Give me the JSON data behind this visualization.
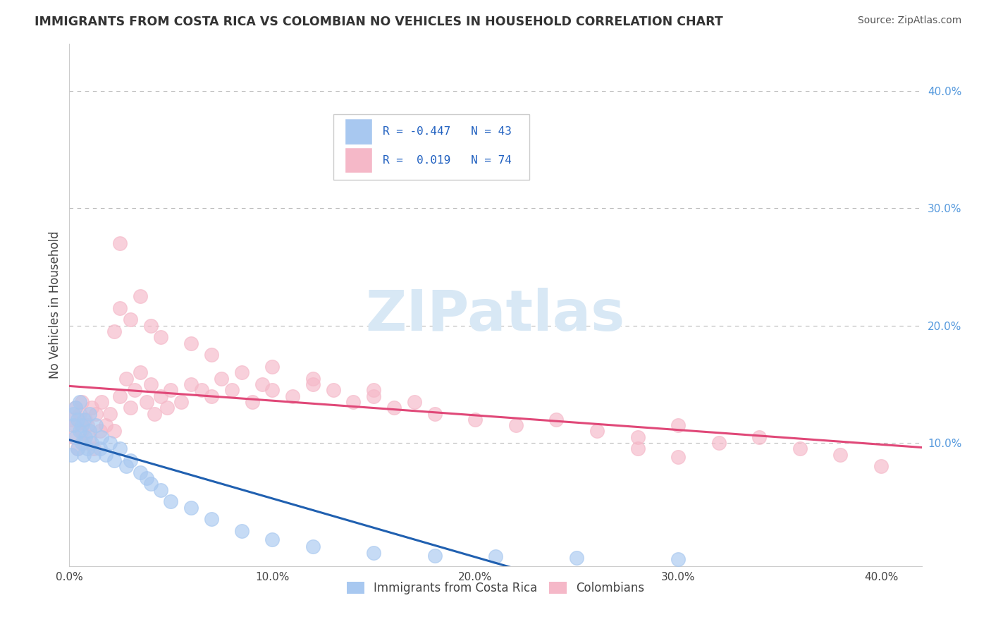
{
  "title": "IMMIGRANTS FROM COSTA RICA VS COLOMBIAN NO VEHICLES IN HOUSEHOLD CORRELATION CHART",
  "source": "Source: ZipAtlas.com",
  "ylabel": "No Vehicles in Household",
  "legend_labels": [
    "Immigrants from Costa Rica",
    "Colombians"
  ],
  "R_blue": -0.447,
  "N_blue": 43,
  "R_pink": 0.019,
  "N_pink": 74,
  "xlim": [
    0.0,
    0.42
  ],
  "ylim": [
    -0.005,
    0.44
  ],
  "color_blue": "#A8C8F0",
  "color_pink": "#F5B8C8",
  "line_color_blue": "#2060B0",
  "line_color_pink": "#E04878",
  "background_color": "#FFFFFF",
  "watermark": "ZIPatlas",
  "watermark_color": "#D8E8F5",
  "blue_x": [
    0.001,
    0.002,
    0.002,
    0.003,
    0.003,
    0.004,
    0.004,
    0.005,
    0.005,
    0.006,
    0.006,
    0.007,
    0.007,
    0.008,
    0.009,
    0.01,
    0.01,
    0.011,
    0.012,
    0.013,
    0.015,
    0.016,
    0.018,
    0.02,
    0.022,
    0.025,
    0.028,
    0.03,
    0.035,
    0.038,
    0.04,
    0.045,
    0.05,
    0.06,
    0.07,
    0.085,
    0.1,
    0.12,
    0.15,
    0.18,
    0.21,
    0.25,
    0.3
  ],
  "blue_y": [
    0.09,
    0.115,
    0.125,
    0.105,
    0.13,
    0.095,
    0.12,
    0.11,
    0.135,
    0.1,
    0.115,
    0.09,
    0.12,
    0.105,
    0.095,
    0.11,
    0.125,
    0.1,
    0.09,
    0.115,
    0.095,
    0.105,
    0.09,
    0.1,
    0.085,
    0.095,
    0.08,
    0.085,
    0.075,
    0.07,
    0.065,
    0.06,
    0.05,
    0.045,
    0.035,
    0.025,
    0.018,
    0.012,
    0.006,
    0.004,
    0.003,
    0.002,
    0.001
  ],
  "pink_x": [
    0.001,
    0.002,
    0.003,
    0.003,
    0.004,
    0.005,
    0.006,
    0.006,
    0.007,
    0.008,
    0.009,
    0.01,
    0.011,
    0.012,
    0.013,
    0.015,
    0.016,
    0.018,
    0.02,
    0.022,
    0.025,
    0.028,
    0.03,
    0.032,
    0.035,
    0.038,
    0.04,
    0.042,
    0.045,
    0.048,
    0.05,
    0.055,
    0.06,
    0.065,
    0.07,
    0.075,
    0.08,
    0.085,
    0.09,
    0.095,
    0.1,
    0.11,
    0.12,
    0.13,
    0.14,
    0.15,
    0.16,
    0.17,
    0.18,
    0.2,
    0.22,
    0.24,
    0.26,
    0.28,
    0.3,
    0.32,
    0.34,
    0.36,
    0.38,
    0.4,
    0.022,
    0.025,
    0.03,
    0.035,
    0.025,
    0.04,
    0.045,
    0.06,
    0.07,
    0.1,
    0.12,
    0.15,
    0.28,
    0.3
  ],
  "pink_y": [
    0.12,
    0.105,
    0.13,
    0.115,
    0.095,
    0.125,
    0.11,
    0.135,
    0.1,
    0.12,
    0.115,
    0.105,
    0.13,
    0.095,
    0.125,
    0.11,
    0.135,
    0.115,
    0.125,
    0.11,
    0.14,
    0.155,
    0.13,
    0.145,
    0.16,
    0.135,
    0.15,
    0.125,
    0.14,
    0.13,
    0.145,
    0.135,
    0.15,
    0.145,
    0.14,
    0.155,
    0.145,
    0.16,
    0.135,
    0.15,
    0.145,
    0.14,
    0.15,
    0.145,
    0.135,
    0.14,
    0.13,
    0.135,
    0.125,
    0.12,
    0.115,
    0.12,
    0.11,
    0.105,
    0.115,
    0.1,
    0.105,
    0.095,
    0.09,
    0.08,
    0.195,
    0.215,
    0.205,
    0.225,
    0.27,
    0.2,
    0.19,
    0.185,
    0.175,
    0.165,
    0.155,
    0.145,
    0.095,
    0.088
  ]
}
